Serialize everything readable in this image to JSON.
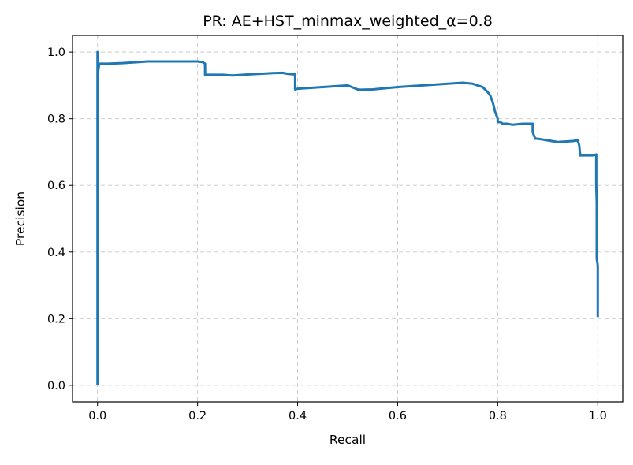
{
  "chart_data": {
    "type": "line",
    "title": "PR: AE+HST_minmax_weighted_α=0.8",
    "xlabel": "Recall",
    "ylabel": "Precision",
    "xlim": [
      -0.05,
      1.05
    ],
    "ylim": [
      -0.05,
      1.05
    ],
    "xticks": [
      0.0,
      0.2,
      0.4,
      0.6,
      0.8,
      1.0
    ],
    "xtick_labels": [
      "0.0",
      "0.2",
      "0.4",
      "0.6",
      "0.8",
      "1.0"
    ],
    "yticks": [
      0.0,
      0.2,
      0.4,
      0.6,
      0.8,
      1.0
    ],
    "ytick_labels": [
      "0.0",
      "0.2",
      "0.4",
      "0.6",
      "0.8",
      "1.0"
    ],
    "grid": true,
    "legend": "none",
    "line_color": "#1f77b4",
    "series": [
      {
        "recall": [
          0.0,
          0.0,
          0.0,
          0.001,
          0.001,
          0.002,
          0.003,
          0.005,
          0.01,
          0.02,
          0.05,
          0.08,
          0.1,
          0.15,
          0.2,
          0.21,
          0.215,
          0.215,
          0.25,
          0.27,
          0.3,
          0.35,
          0.37,
          0.38,
          0.395,
          0.395,
          0.4,
          0.45,
          0.5,
          0.52,
          0.525,
          0.55,
          0.6,
          0.65,
          0.7,
          0.73,
          0.75,
          0.76,
          0.77,
          0.78,
          0.785,
          0.79,
          0.795,
          0.8,
          0.8,
          0.805,
          0.81,
          0.82,
          0.83,
          0.85,
          0.86,
          0.87,
          0.87,
          0.875,
          0.88,
          0.9,
          0.92,
          0.95,
          0.96,
          0.963,
          0.965,
          0.97,
          0.99,
          0.997,
          0.997,
          0.998,
          0.998,
          0.999,
          1.0,
          1.0
        ],
        "precision": [
          0.0,
          0.74,
          1.0,
          0.92,
          0.94,
          0.95,
          0.96,
          0.965,
          0.965,
          0.965,
          0.967,
          0.97,
          0.972,
          0.972,
          0.972,
          0.97,
          0.965,
          0.932,
          0.932,
          0.93,
          0.933,
          0.937,
          0.938,
          0.935,
          0.933,
          0.888,
          0.89,
          0.895,
          0.9,
          0.888,
          0.887,
          0.888,
          0.895,
          0.9,
          0.905,
          0.908,
          0.905,
          0.9,
          0.895,
          0.88,
          0.87,
          0.85,
          0.82,
          0.8,
          0.79,
          0.79,
          0.785,
          0.785,
          0.782,
          0.785,
          0.785,
          0.785,
          0.76,
          0.74,
          0.74,
          0.735,
          0.73,
          0.733,
          0.735,
          0.72,
          0.69,
          0.69,
          0.69,
          0.693,
          0.6,
          0.55,
          0.38,
          0.37,
          0.36,
          0.205
        ]
      }
    ]
  }
}
